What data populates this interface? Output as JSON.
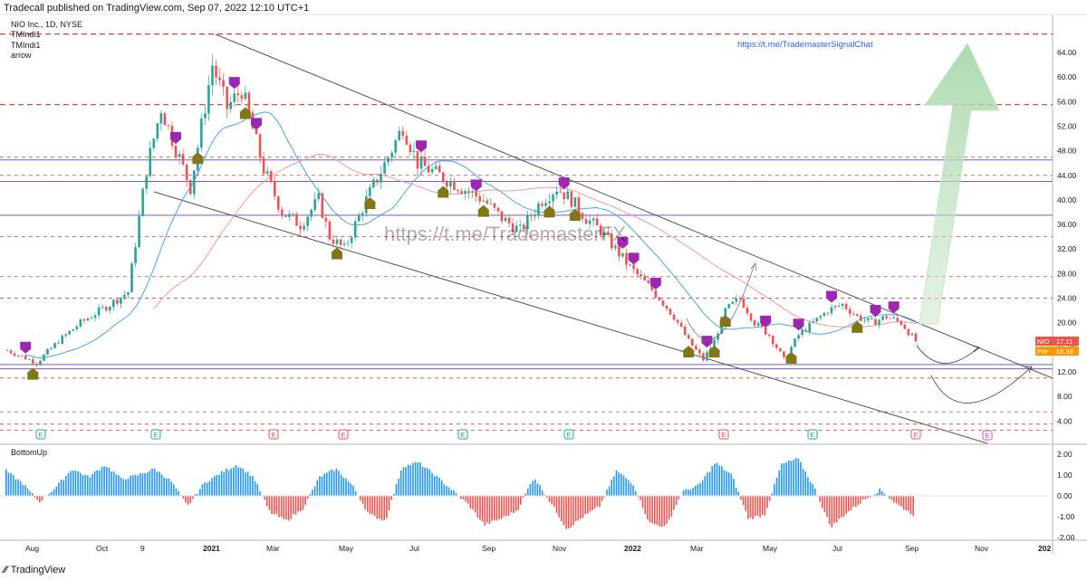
{
  "header": {
    "published": "Tradecall published on TradingView.com, Sep 07, 2022 12:10 UTC+1"
  },
  "legend": {
    "symbol": "NIO Inc., 1D, NYSE",
    "ind1": "TMIndi1",
    "ind2": "TMIndi1",
    "ind3": "arrow"
  },
  "indicator_panel": {
    "title": "BottomUp"
  },
  "watermark": "https://t.me/TrademasterFX",
  "link_text": "https://t.me/TrademasterSignalChat",
  "price_tags": [
    {
      "label": "NIO",
      "value": "17.11",
      "color": "#ef5350"
    },
    {
      "label": "Pre",
      "value": "16.39",
      "color": "#ff9800"
    }
  ],
  "footer": {
    "logo": "TradingView"
  },
  "colors": {
    "up": "#26a69a",
    "down": "#ef5350",
    "hist_up": "#2196f3",
    "hist_down": "#ef5350",
    "resistance": "#e53935",
    "support": "#7e57c2",
    "ma_blue": "#42a5f5",
    "ma_red": "#ef9a9a"
  },
  "chart_data": {
    "type": "candlestick",
    "symbol": "NIO",
    "y_ticks": [
      "64.00",
      "60.00",
      "56.00",
      "52.00",
      "48.00",
      "44.00",
      "40.00",
      "36.00",
      "32.00",
      "28.00",
      "24.00",
      "20.00",
      "16.00",
      "12.00",
      "8.00",
      "4.00"
    ],
    "x_ticks": [
      "Aug",
      "Oct",
      "9",
      "2021",
      "Mar",
      "May",
      "Jul",
      "Sep",
      "Nov",
      "2022",
      "Mar",
      "May",
      "Jul",
      "Sep",
      "Nov",
      "202"
    ],
    "ylim": [
      2,
      68
    ],
    "indicator_ticks": [
      "2.00",
      "1.00",
      "0.00",
      "-1.00",
      "-2.00"
    ],
    "indicator_ylim": [
      -2.3,
      2.4
    ],
    "resistance_levels": [
      67,
      55.5,
      47,
      44,
      34,
      27.5,
      24,
      11,
      5.5,
      3.5,
      2.5
    ],
    "support_levels": [
      46.5,
      43,
      37.5,
      13.2,
      12.5
    ],
    "event_markers": [
      "E",
      "E",
      "E",
      "E",
      "E",
      "E",
      "E",
      "E",
      "E",
      "E",
      "E",
      "E"
    ],
    "last_price": 17.11,
    "premarket_price": 16.39,
    "price_path": [
      [
        0,
        15.5
      ],
      [
        8,
        13.5
      ],
      [
        14,
        17
      ],
      [
        20,
        20
      ],
      [
        28,
        23
      ],
      [
        33,
        25
      ],
      [
        38,
        45
      ],
      [
        42,
        55
      ],
      [
        45,
        50
      ],
      [
        50,
        42
      ],
      [
        56,
        62
      ],
      [
        60,
        55
      ],
      [
        64,
        58
      ],
      [
        70,
        45
      ],
      [
        75,
        38
      ],
      [
        80,
        36
      ],
      [
        85,
        40
      ],
      [
        88,
        34
      ],
      [
        92,
        32
      ],
      [
        98,
        40
      ],
      [
        104,
        47
      ],
      [
        108,
        52
      ],
      [
        112,
        46
      ],
      [
        118,
        44
      ],
      [
        124,
        42
      ],
      [
        130,
        40
      ],
      [
        135,
        37
      ],
      [
        140,
        35
      ],
      [
        146,
        40
      ],
      [
        150,
        42
      ],
      [
        154,
        40
      ],
      [
        158,
        37
      ],
      [
        162,
        35
      ],
      [
        166,
        32
      ],
      [
        170,
        29
      ],
      [
        175,
        26
      ],
      [
        178,
        24
      ],
      [
        182,
        21
      ],
      [
        186,
        17
      ],
      [
        190,
        14
      ],
      [
        193,
        17
      ],
      [
        196,
        22
      ],
      [
        200,
        24
      ],
      [
        204,
        20
      ],
      [
        208,
        18
      ],
      [
        212,
        14
      ],
      [
        216,
        18
      ],
      [
        220,
        20
      ],
      [
        224,
        22
      ],
      [
        228,
        23
      ],
      [
        232,
        21
      ],
      [
        236,
        20
      ],
      [
        240,
        21
      ],
      [
        244,
        20
      ],
      [
        248,
        17
      ]
    ],
    "indicator_values": [
      1.2,
      0.6,
      -0.3,
      0.4,
      1.3,
      0.9,
      1.5,
      0.8,
      1.0,
      1.3,
      0.7,
      -0.5,
      0.6,
      1.1,
      1.5,
      0.9,
      -0.8,
      -1.2,
      -0.6,
      0.9,
      1.3,
      0.5,
      -0.9,
      -1.2,
      1.4,
      1.6,
      1.0,
      0.3,
      -0.4,
      -1.4,
      -1.1,
      -0.7,
      0.9,
      -0.3,
      -1.6,
      -1.0,
      -0.5,
      1.2,
      0.6,
      -1.3,
      -1.5,
      0.2,
      0.5,
      1.6,
      1.0,
      -1.1,
      -0.9,
      1.5,
      1.8,
      0.4,
      -1.5,
      -0.8,
      -0.2,
      0.3,
      -0.4,
      -0.9
    ]
  }
}
